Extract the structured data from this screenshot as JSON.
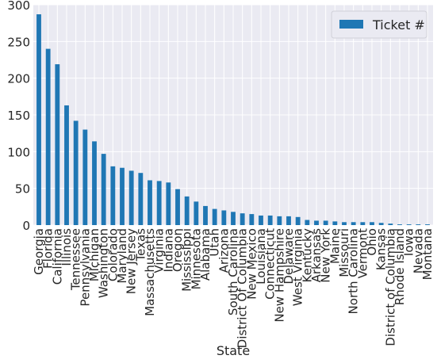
{
  "chart_data": {
    "type": "bar",
    "title": "",
    "xlabel": "State",
    "ylabel": "",
    "ylim": [
      0,
      300
    ],
    "yticks": [
      0,
      50,
      100,
      150,
      200,
      250,
      300
    ],
    "grid": true,
    "legend_position": "top-right",
    "colors": {
      "bar": "#1f77b4",
      "plot_bg": "#eaeaf2",
      "grid": "#ffffff"
    },
    "categories": [
      "Georgia",
      "Florida",
      "California",
      "Illinois",
      "Tennessee",
      "Pennsylvania",
      "Michigan",
      "Washington",
      "Colorado",
      "Maryland",
      "New Jersey",
      "Texas",
      "Massachusetts",
      "Virginia",
      "Indiana",
      "Oregon",
      "Mississippi",
      "Minnesota",
      "Alabama",
      "Utah",
      "Arizona",
      "South Carolina",
      "District Of Columbia",
      "New Mexico",
      "Louisiana",
      "Connecticut",
      "New Hampshire",
      "Delaware",
      "West Virginia",
      "Kentucky",
      "Arkansas",
      "New York",
      "Maine",
      "Missouri",
      "North Carolina",
      "Vermont",
      "Ohio",
      "Kansas",
      "District of Columbia",
      "Rhode Island",
      "Iowa",
      "Nevada",
      "Montana"
    ],
    "series": [
      {
        "name": "Ticket #",
        "values": [
          287,
          240,
          219,
          163,
          142,
          130,
          114,
          97,
          80,
          78,
          74,
          71,
          61,
          60,
          58,
          49,
          39,
          32,
          26,
          22,
          20,
          18,
          16,
          15,
          13,
          13,
          12,
          12,
          11,
          7,
          6,
          6,
          5,
          4,
          4,
          4,
          4,
          3,
          2,
          1,
          1,
          1,
          1
        ]
      }
    ]
  }
}
